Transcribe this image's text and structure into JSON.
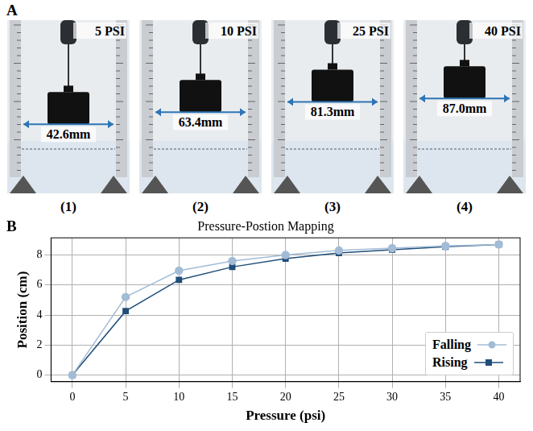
{
  "panel_letters": [
    "A",
    "B"
  ],
  "panel_a": {
    "frames": [
      {
        "pressure_label": "5 PSI",
        "displacement": {
          "value": 42.6,
          "label": "42.6mm"
        },
        "caption": "(1)"
      },
      {
        "pressure_label": "10 PSI",
        "displacement": {
          "value": 63.4,
          "label": "63.4mm"
        },
        "caption": "(2)"
      },
      {
        "pressure_label": "25 PSI",
        "displacement": {
          "value": 81.3,
          "label": "81.3mm"
        },
        "caption": "(3)"
      },
      {
        "pressure_label": "40 PSI",
        "displacement": {
          "value": 87.0,
          "label": "87.0mm"
        },
        "caption": "(4)"
      }
    ]
  },
  "chart_data": {
    "type": "line",
    "title": "Pressure-Postion Mapping",
    "x_label": "Pressure (psi)",
    "y_label": "Position (cm)",
    "x": [
      0,
      5,
      10,
      15,
      20,
      25,
      30,
      35,
      40
    ],
    "xlim": [
      -2,
      42
    ],
    "xticks": [
      0,
      5,
      10,
      15,
      20,
      25,
      30,
      35,
      40
    ],
    "ylim": [
      -0.44,
      9.14
    ],
    "yticks": [
      0,
      2,
      4,
      6,
      8
    ],
    "grid": true,
    "legend": "lower right",
    "series": [
      {
        "name": "Falling",
        "color": "#a3bcd6",
        "marker": "circle",
        "values": [
          0,
          5.2,
          6.95,
          7.6,
          8.0,
          8.3,
          8.45,
          8.6,
          8.7
        ]
      },
      {
        "name": "Rising",
        "color": "#1f4e79",
        "marker": "square",
        "values": [
          0,
          4.26,
          6.34,
          7.2,
          7.75,
          8.13,
          8.35,
          8.55,
          8.7
        ]
      }
    ]
  }
}
